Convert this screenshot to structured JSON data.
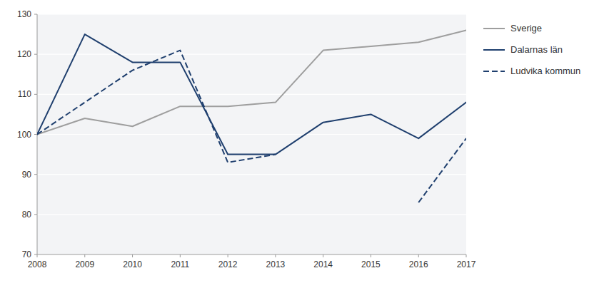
{
  "chart_data": {
    "type": "line",
    "x": [
      2008,
      2009,
      2010,
      2011,
      2012,
      2013,
      2014,
      2015,
      2016,
      2017
    ],
    "series": [
      {
        "name": "Sverige",
        "color": "#9E9E9E",
        "line_style": "solid",
        "values": [
          100,
          104,
          102,
          107,
          107,
          108,
          121,
          122,
          123,
          126
        ]
      },
      {
        "name": "Dalarnas län",
        "color": "#1F3F6E",
        "line_style": "solid",
        "values": [
          100,
          125,
          118,
          118,
          95,
          95,
          103,
          105,
          99,
          108
        ]
      },
      {
        "name": "Ludvika kommun",
        "color": "#1F3F6E",
        "line_style": "dashed",
        "values": [
          100,
          108,
          116,
          121,
          93,
          95,
          null,
          null,
          83,
          99
        ]
      }
    ],
    "xlim": [
      2008,
      2017
    ],
    "xticks": [
      2008,
      2009,
      2010,
      2011,
      2012,
      2013,
      2014,
      2015,
      2016,
      2017
    ],
    "ylim": [
      70,
      130
    ],
    "yticks": [
      70,
      80,
      90,
      100,
      110,
      120,
      130
    ],
    "grid": true,
    "legend": "right"
  }
}
